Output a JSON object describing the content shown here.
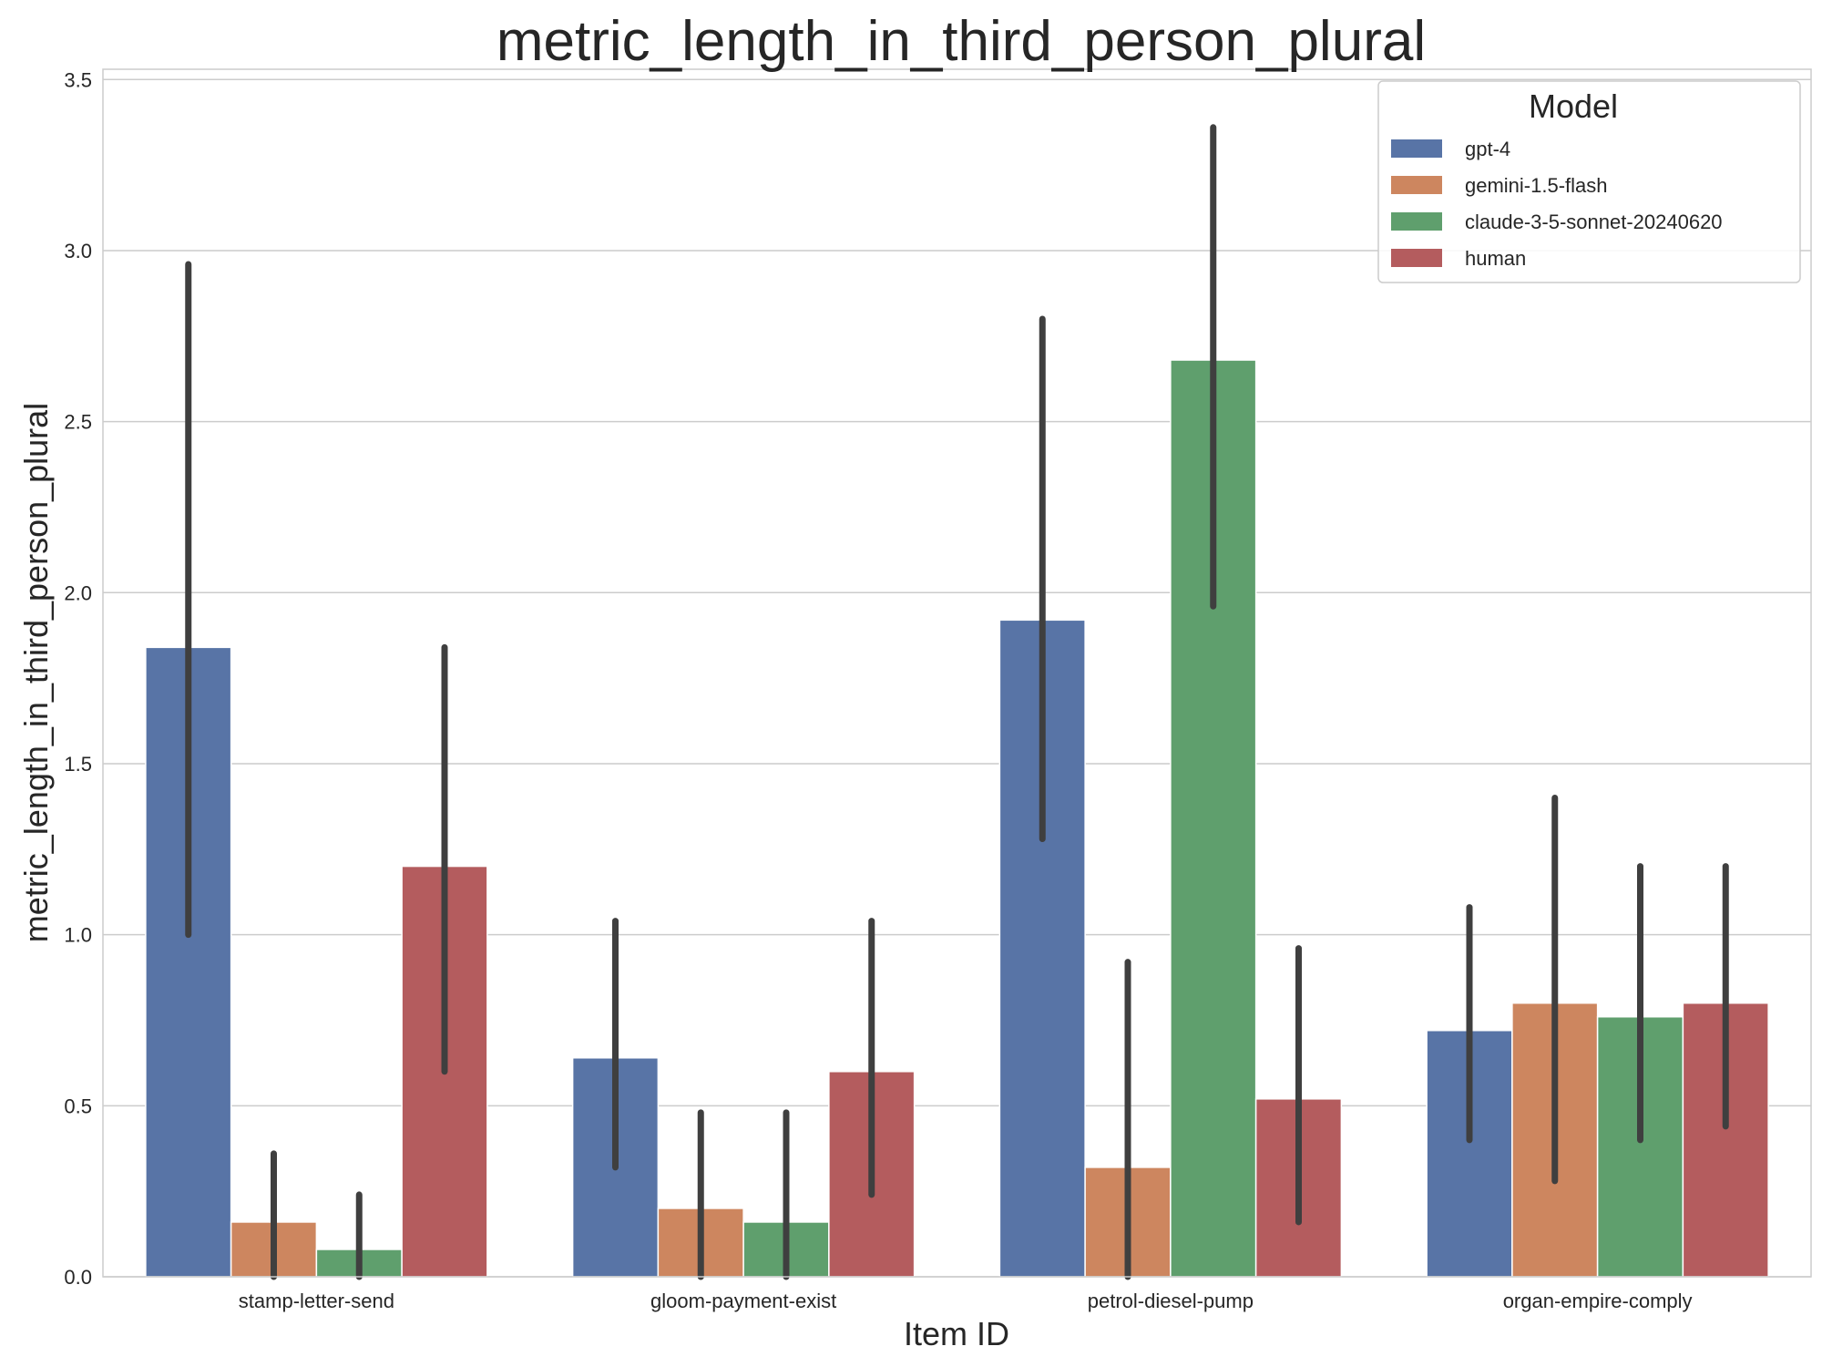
{
  "chart_data": {
    "type": "bar",
    "title": "metric_length_in_third_person_plural",
    "xlabel": "Item ID",
    "ylabel": "metric_length_in_third_person_plural",
    "ylim": [
      0,
      3.53
    ],
    "yticks": [
      "0.0",
      "0.5",
      "1.0",
      "1.5",
      "2.0",
      "2.5",
      "3.0",
      "3.5"
    ],
    "grid": true,
    "legend": {
      "title": "Model",
      "position": "top-right"
    },
    "categories": [
      "stamp-letter-send",
      "gloom-payment-exist",
      "petrol-diesel-pump",
      "organ-empire-comply"
    ],
    "series": [
      {
        "name": "gpt-4",
        "color": "#5874a6",
        "values": [
          1.84,
          0.64,
          1.92,
          0.72
        ],
        "ci_low": [
          1.0,
          0.32,
          1.28,
          0.4
        ],
        "ci_high": [
          2.96,
          1.04,
          2.8,
          1.08
        ]
      },
      {
        "name": "gemini-1.5-flash",
        "color": "#cd865f",
        "values": [
          0.16,
          0.2,
          0.32,
          0.8
        ],
        "ci_low": [
          0.0,
          0.0,
          0.0,
          0.28
        ],
        "ci_high": [
          0.36,
          0.48,
          0.92,
          1.4
        ]
      },
      {
        "name": "claude-3-5-sonnet-20240620",
        "color": "#5f9f6d",
        "values": [
          0.08,
          0.16,
          2.68,
          0.76
        ],
        "ci_low": [
          0.0,
          0.0,
          1.96,
          0.4
        ],
        "ci_high": [
          0.24,
          0.48,
          3.36,
          1.2
        ]
      },
      {
        "name": "human",
        "color": "#b45c5e",
        "values": [
          1.2,
          0.6,
          0.52,
          0.8
        ],
        "ci_low": [
          0.6,
          0.24,
          0.16,
          0.44
        ],
        "ci_high": [
          1.84,
          1.04,
          0.96,
          1.2
        ]
      }
    ]
  }
}
